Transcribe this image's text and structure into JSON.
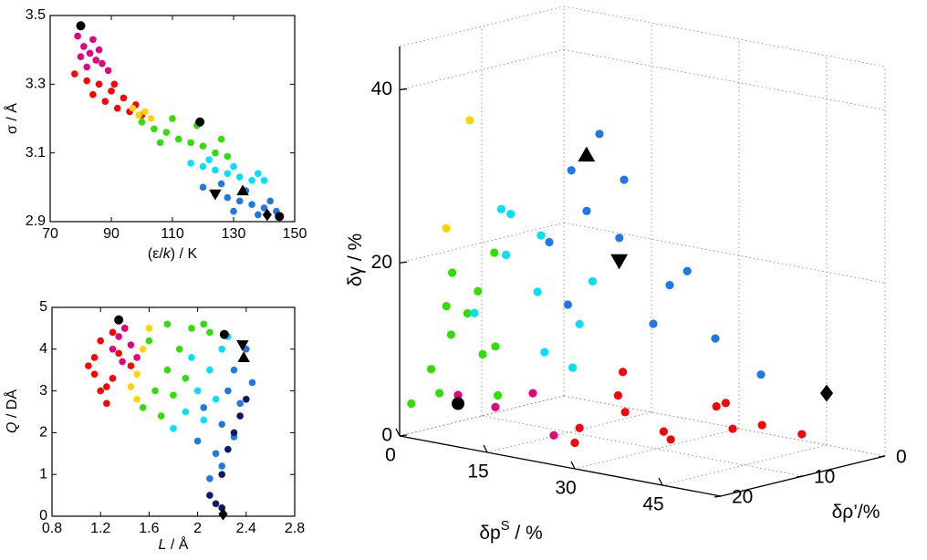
{
  "chart_data": [
    {
      "type": "scatter",
      "xlabel": [
        "(ε/",
        "k",
        ") / K"
      ],
      "ylabel": [
        "σ / Å"
      ],
      "xlim": [
        70,
        150
      ],
      "xticks": [
        70,
        90,
        110,
        130,
        150
      ],
      "ylim": [
        2.9,
        3.5
      ],
      "yticks": [
        2.9,
        3.1,
        3.3,
        3.5
      ],
      "series": [
        {
          "color": "#e6007e",
          "marker": "o",
          "x": [
            79,
            81,
            83,
            85,
            80,
            84,
            87,
            82,
            86,
            89
          ],
          "y": [
            3.44,
            3.41,
            3.39,
            3.37,
            3.38,
            3.43,
            3.36,
            3.35,
            3.4,
            3.34
          ]
        },
        {
          "color": "#ff0000",
          "marker": "o",
          "x": [
            78,
            82,
            86,
            90,
            94,
            98,
            84,
            88,
            92,
            96,
            100,
            91
          ],
          "y": [
            3.33,
            3.31,
            3.3,
            3.28,
            3.26,
            3.24,
            3.27,
            3.25,
            3.23,
            3.22,
            3.21,
            3.3
          ]
        },
        {
          "color": "#ffd400",
          "marker": "o",
          "x": [
            97,
            99,
            101,
            103,
            100
          ],
          "y": [
            3.23,
            3.21,
            3.22,
            3.2,
            3.19
          ]
        },
        {
          "color": "#2ee000",
          "marker": "o",
          "x": [
            100,
            104,
            108,
            112,
            116,
            120,
            124,
            128,
            110,
            118,
            126,
            106
          ],
          "y": [
            3.19,
            3.17,
            3.16,
            3.14,
            3.13,
            3.12,
            3.1,
            3.09,
            3.2,
            3.18,
            3.14,
            3.13
          ]
        },
        {
          "color": "#00e1ff",
          "marker": "o",
          "x": [
            116,
            120,
            124,
            128,
            132,
            136,
            140,
            122,
            130,
            138
          ],
          "y": [
            3.07,
            3.06,
            3.05,
            3.04,
            3.03,
            3.02,
            3.02,
            3.08,
            3.06,
            3.04
          ]
        },
        {
          "color": "#1e78e6",
          "marker": "o",
          "x": [
            120,
            124,
            128,
            132,
            136,
            140,
            144,
            126,
            134,
            142,
            130,
            138
          ],
          "y": [
            3.0,
            2.98,
            2.97,
            2.96,
            2.95,
            2.94,
            2.93,
            3.01,
            2.99,
            2.96,
            2.93,
            2.92
          ]
        },
        {
          "color": "#000000",
          "marker": "o",
          "x": [
            80,
            119,
            145
          ],
          "y": [
            3.47,
            3.19,
            2.915
          ]
        },
        {
          "color": "#000000",
          "marker": "v",
          "x": [
            124
          ],
          "y": [
            2.98
          ]
        },
        {
          "color": "#000000",
          "marker": "^",
          "x": [
            133
          ],
          "y": [
            2.99
          ]
        },
        {
          "color": "#000000",
          "marker": "d",
          "x": [
            141
          ],
          "y": [
            2.92
          ]
        }
      ]
    },
    {
      "type": "scatter",
      "xlabel": [
        "L",
        " / Å"
      ],
      "ylabel": [
        "Q",
        " / DÅ"
      ],
      "xlim": [
        0.8,
        2.8
      ],
      "xticks": [
        0.8,
        1.2,
        1.6,
        2,
        2.4,
        2.8
      ],
      "ylim": [
        0,
        5
      ],
      "yticks": [
        0,
        1,
        2,
        3,
        4,
        5
      ],
      "series": [
        {
          "color": "#ff0000",
          "marker": "o",
          "x": [
            1.1,
            1.15,
            1.2,
            1.25,
            1.3,
            1.35,
            1.2,
            1.3,
            1.4,
            1.45,
            1.15,
            1.25
          ],
          "y": [
            3.6,
            3.4,
            3.0,
            2.7,
            3.3,
            3.9,
            4.2,
            4.4,
            4.5,
            3.6,
            3.8,
            3.1
          ]
        },
        {
          "color": "#e6007e",
          "marker": "o",
          "x": [
            1.3,
            1.35,
            1.4,
            1.45,
            1.5,
            1.38
          ],
          "y": [
            4.0,
            4.3,
            4.5,
            4.1,
            3.8,
            3.7
          ]
        },
        {
          "color": "#ffd400",
          "marker": "o",
          "x": [
            1.45,
            1.5,
            1.55,
            1.6,
            1.5
          ],
          "y": [
            3.1,
            3.4,
            4.0,
            4.5,
            2.8
          ]
        },
        {
          "color": "#2ee000",
          "marker": "o",
          "x": [
            1.55,
            1.65,
            1.75,
            1.85,
            1.95,
            2.05,
            1.7,
            1.8,
            1.9,
            1.6,
            2.1,
            1.75
          ],
          "y": [
            2.6,
            3.0,
            3.5,
            4.0,
            4.5,
            4.6,
            2.4,
            2.9,
            3.3,
            4.2,
            4.4,
            4.6
          ]
        },
        {
          "color": "#00e1ff",
          "marker": "o",
          "x": [
            1.8,
            1.9,
            2.0,
            2.1,
            2.2,
            2.25,
            1.95,
            2.05,
            2.15
          ],
          "y": [
            2.1,
            2.5,
            3.0,
            3.5,
            4.0,
            4.3,
            3.8,
            2.3,
            2.8
          ]
        },
        {
          "color": "#1e78e6",
          "marker": "o",
          "x": [
            2.0,
            2.1,
            2.15,
            2.2,
            2.25,
            2.3,
            2.35,
            2.4,
            2.45,
            2.05,
            2.2,
            2.3
          ],
          "y": [
            1.8,
            0.9,
            1.5,
            2.2,
            3.0,
            3.5,
            2.7,
            4.0,
            3.2,
            2.6,
            1.2,
            1.9
          ]
        },
        {
          "color": "#0a1a6e",
          "marker": "o",
          "x": [
            2.1,
            2.15,
            2.2,
            2.25,
            2.3,
            2.35,
            2.4,
            2.2
          ],
          "y": [
            0.5,
            0.3,
            1.0,
            1.6,
            2.0,
            2.4,
            2.8,
            0.2
          ]
        },
        {
          "color": "#000000",
          "marker": "o",
          "x": [
            1.35,
            2.22
          ],
          "y": [
            4.7,
            4.35
          ]
        },
        {
          "color": "#000000",
          "marker": "v",
          "x": [
            2.37
          ],
          "y": [
            4.1
          ]
        },
        {
          "color": "#000000",
          "marker": "^",
          "x": [
            2.38
          ],
          "y": [
            3.8
          ]
        },
        {
          "color": "#000000",
          "marker": "d",
          "x": [
            2.21
          ],
          "y": [
            0.05
          ]
        }
      ]
    },
    {
      "type": "scatter3d",
      "xlabel": [
        "δp",
        "S",
        " / %"
      ],
      "ylabel": [
        "δρ’/%"
      ],
      "zlabel": [
        "δγ / %"
      ],
      "xlim": [
        0,
        55
      ],
      "xticks": [
        0,
        15,
        30,
        45
      ],
      "ylim": [
        0,
        20
      ],
      "yticks": [
        0,
        10,
        20
      ],
      "zlim": [
        0,
        45
      ],
      "zticks": [
        0,
        20,
        40
      ],
      "grid": true,
      "series": [
        {
          "color": "#2ee000",
          "marker": "o",
          "x": [
            2,
            4,
            6,
            8,
            10,
            12,
            14,
            6,
            9,
            12,
            4,
            15
          ],
          "y": [
            20,
            19,
            18,
            20,
            17,
            19,
            18,
            16,
            20,
            17,
            18,
            19
          ],
          "z": [
            4,
            8,
            12,
            16,
            10,
            18,
            6,
            14,
            20,
            22,
            5,
            12
          ]
        },
        {
          "color": "#00e1ff",
          "marker": "o",
          "x": [
            10,
            14,
            18,
            22,
            26,
            16,
            20,
            24,
            12,
            28
          ],
          "y": [
            18,
            17,
            16,
            18,
            15,
            19,
            17,
            16,
            15,
            18
          ],
          "z": [
            15,
            22,
            18,
            12,
            20,
            28,
            25,
            10,
            26,
            16
          ]
        },
        {
          "color": "#1e78e6",
          "marker": "o",
          "x": [
            20,
            25,
            30,
            35,
            40,
            45,
            30,
            35,
            26,
            32,
            38,
            28
          ],
          "y": [
            16,
            15,
            14,
            12,
            10,
            8,
            17,
            14,
            18,
            16,
            12,
            19
          ],
          "z": [
            24,
            28,
            32,
            20,
            14,
            10,
            38,
            16,
            18,
            26,
            22,
            34
          ]
        },
        {
          "color": "#ff0000",
          "marker": "o",
          "x": [
            28,
            33,
            38,
            43,
            48,
            52,
            36,
            41,
            46,
            30,
            50,
            34
          ],
          "y": [
            18,
            16,
            14,
            12,
            10,
            8,
            19,
            17,
            13,
            20,
            15,
            17
          ],
          "z": [
            4,
            6,
            3,
            7,
            5,
            4,
            9,
            5,
            8,
            3,
            6,
            11
          ]
        },
        {
          "color": "#e6007e",
          "marker": "o",
          "x": [
            15,
            20,
            25,
            10
          ],
          "y": [
            19,
            18,
            19,
            20
          ],
          "z": [
            5,
            7,
            3,
            6
          ]
        },
        {
          "color": "#ffd400",
          "marker": "o",
          "x": [
            12,
            8
          ],
          "y": [
            20,
            20
          ],
          "z": [
            38,
            25
          ]
        },
        {
          "color": "#000000",
          "marker": "o",
          "x": [
            10
          ],
          "y": [
            20
          ],
          "z": [
            5
          ]
        },
        {
          "color": "#000000",
          "marker": "^",
          "x": [
            32
          ],
          "y": [
            20
          ],
          "z": [
            36.5
          ]
        },
        {
          "color": "#000000",
          "marker": "v",
          "x": [
            37.6
          ],
          "y": [
            20
          ],
          "z": [
            25
          ]
        },
        {
          "color": "#000000",
          "marker": "d",
          "x": [
            45
          ],
          "y": [
            0
          ],
          "z": [
            6
          ]
        }
      ]
    }
  ]
}
